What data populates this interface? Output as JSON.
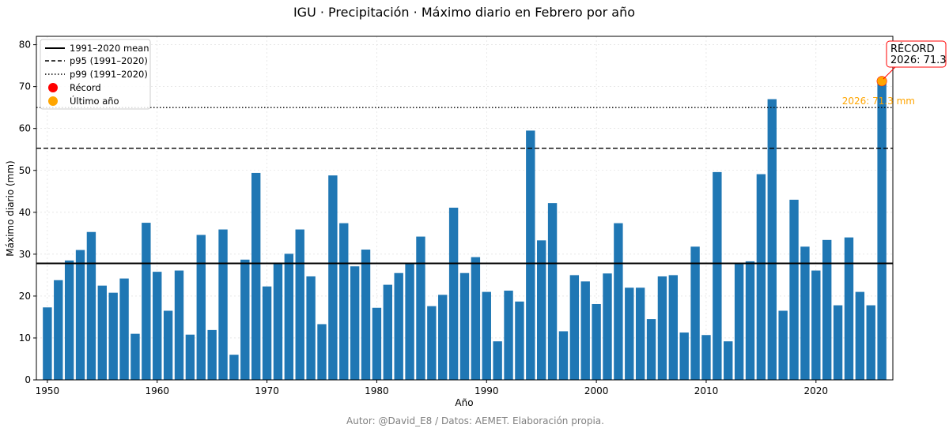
{
  "chart_data": {
    "type": "bar",
    "title": "IGU · Precipitación · Máximo diario en Febrero por año",
    "xlabel": "Año",
    "ylabel": "Máximo diario (mm)",
    "xlim": [
      1949,
      2027
    ],
    "ylim": [
      0,
      82
    ],
    "x_ticks": [
      1950,
      1960,
      1970,
      1980,
      1990,
      2000,
      2010,
      2020
    ],
    "y_ticks": [
      0,
      10,
      20,
      30,
      40,
      50,
      60,
      70,
      80
    ],
    "grid": true,
    "bar_color": "#1f77b4",
    "years": [
      1950,
      1951,
      1952,
      1953,
      1954,
      1955,
      1956,
      1957,
      1958,
      1959,
      1960,
      1961,
      1962,
      1963,
      1964,
      1965,
      1966,
      1967,
      1968,
      1969,
      1970,
      1971,
      1972,
      1973,
      1974,
      1975,
      1976,
      1977,
      1978,
      1979,
      1980,
      1981,
      1982,
      1983,
      1984,
      1985,
      1986,
      1987,
      1988,
      1989,
      1990,
      1991,
      1992,
      1993,
      1994,
      1995,
      1996,
      1997,
      1998,
      1999,
      2000,
      2001,
      2002,
      2003,
      2004,
      2005,
      2006,
      2007,
      2008,
      2009,
      2010,
      2011,
      2012,
      2013,
      2014,
      2015,
      2016,
      2017,
      2018,
      2019,
      2020,
      2021,
      2022,
      2023,
      2024,
      2025,
      2026
    ],
    "values": [
      17.3,
      23.8,
      28.5,
      31.0,
      35.3,
      22.5,
      20.8,
      24.2,
      11.0,
      37.5,
      25.8,
      16.5,
      26.1,
      10.8,
      34.6,
      11.9,
      35.9,
      6.0,
      28.7,
      49.4,
      22.3,
      28.0,
      30.1,
      35.9,
      24.7,
      13.3,
      48.8,
      37.4,
      27.1,
      31.1,
      17.2,
      22.7,
      25.5,
      27.9,
      34.2,
      17.6,
      20.3,
      41.1,
      25.5,
      29.3,
      21.0,
      9.2,
      21.3,
      18.7,
      59.5,
      33.3,
      42.2,
      11.6,
      25.0,
      23.5,
      18.1,
      25.4,
      37.4,
      22.0,
      22.0,
      14.5,
      24.7,
      25.0,
      11.3,
      31.8,
      10.7,
      49.6,
      9.2,
      27.8,
      28.3,
      49.1,
      67.0,
      16.5,
      43.0,
      31.8,
      26.1,
      33.4,
      17.8,
      34.0,
      21.0,
      17.8,
      71.3
    ],
    "reference_lines": [
      {
        "name": "1991–2020 mean",
        "value": 27.8,
        "style": "solid"
      },
      {
        "name": "p95 (1991–2020)",
        "value": 55.3,
        "style": "dashed"
      },
      {
        "name": "p99 (1991–2020)",
        "value": 65.0,
        "style": "dotted"
      }
    ],
    "markers": [
      {
        "name": "Récord",
        "color": "#ff0000",
        "year": 2026,
        "value": 71.3
      },
      {
        "name": "Último año",
        "color": "#ffa500",
        "year": 2026,
        "value": 71.3
      }
    ],
    "legend": {
      "placement": "top-left",
      "entries": [
        "1991–2020 mean",
        "p95 (1991–2020)",
        "p99 (1991–2020)",
        "Récord",
        "Último año"
      ]
    },
    "annotations": {
      "record_box": "RÉCORD\n2026: 71.3",
      "last_year_label": "2026: 71.3 mm"
    }
  },
  "footer": "Autor: @David_E8 / Datos: AEMET. Elaboración propia."
}
